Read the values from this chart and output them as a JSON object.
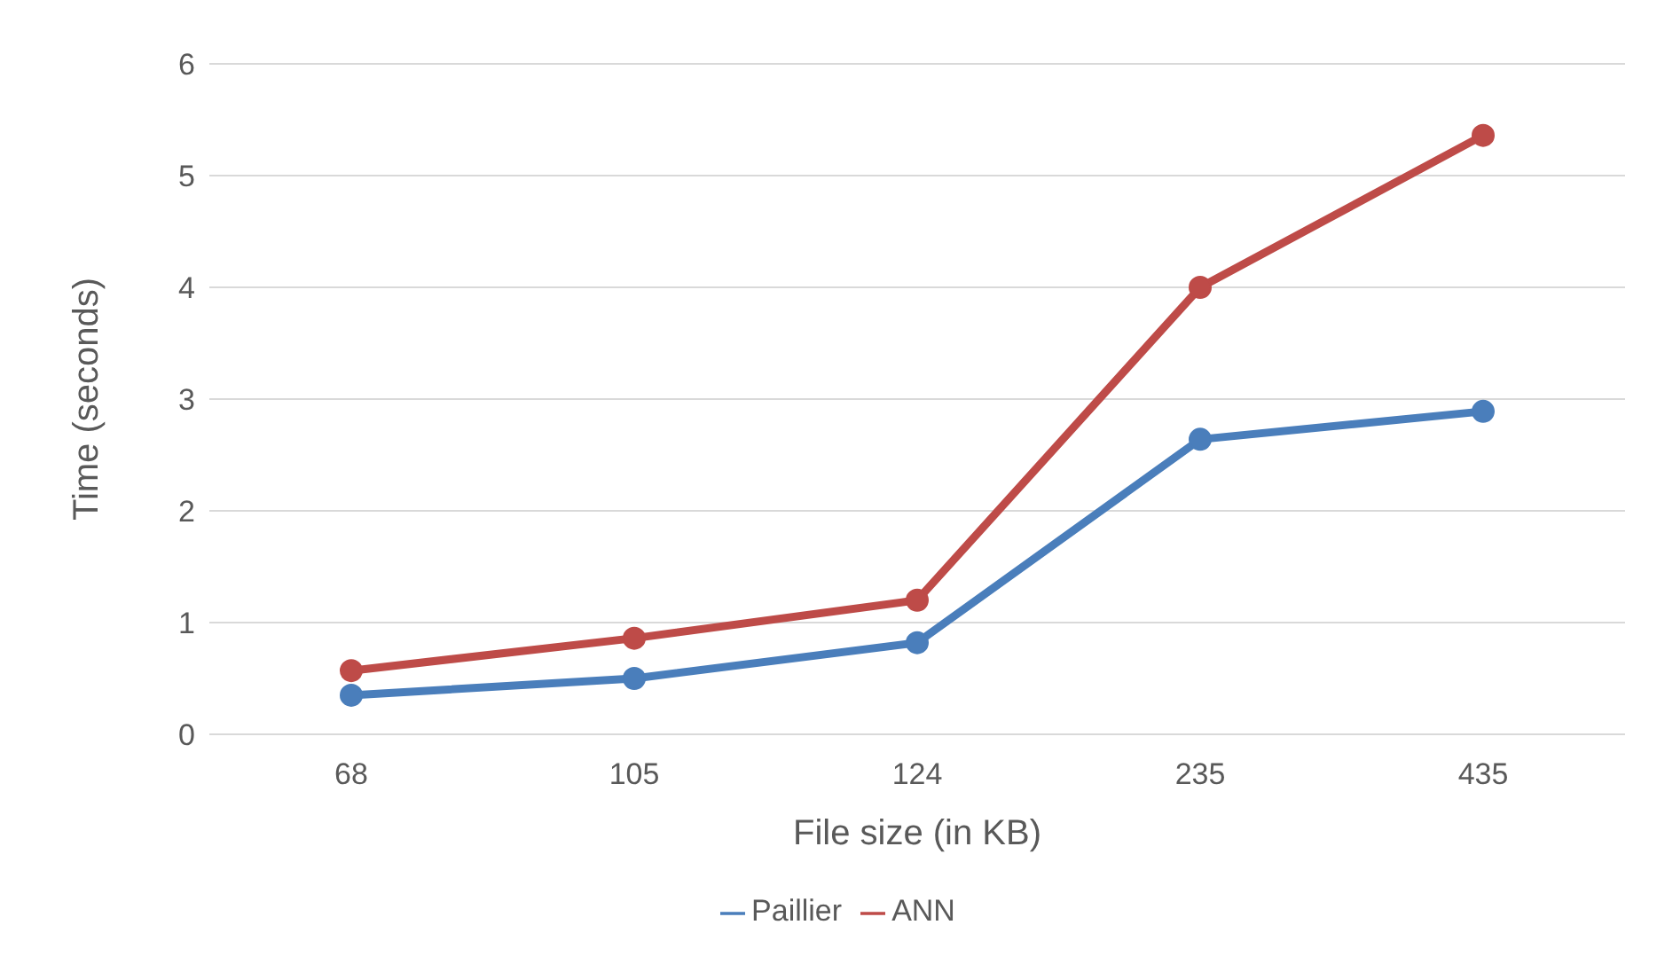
{
  "chart_data": {
    "type": "line",
    "xlabel": "File size (in KB)",
    "ylabel": "Time (seconds)",
    "categories": [
      "68",
      "105",
      "124",
      "235",
      "435"
    ],
    "series": [
      {
        "name": "Paillier",
        "color": "#4a7ebb",
        "values": [
          0.35,
          0.5,
          0.82,
          2.64,
          2.89
        ]
      },
      {
        "name": "ANN",
        "color": "#be4b48",
        "values": [
          0.57,
          0.86,
          1.2,
          4.0,
          5.36
        ]
      }
    ],
    "ylim": [
      0,
      6
    ],
    "yticks": [
      0,
      1,
      2,
      3,
      4,
      5,
      6
    ],
    "grid": "y",
    "legend": "bottom",
    "marker": "circle",
    "line_style": "solid"
  }
}
